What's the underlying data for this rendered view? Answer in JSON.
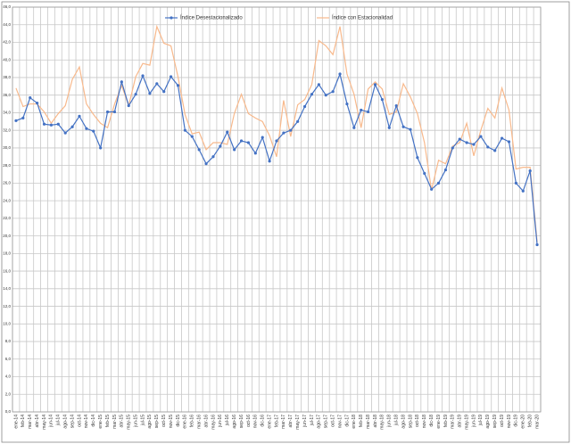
{
  "chart_data": {
    "type": "line",
    "categories": [
      "ene-14",
      "feb-14",
      "mar-14",
      "abr-14",
      "may-14",
      "jun-14",
      "jul-14",
      "ago-14",
      "sep-14",
      "oct-14",
      "nov-14",
      "dic-14",
      "ene-15",
      "feb-15",
      "mar-15",
      "abr-15",
      "may-15",
      "jun-15",
      "jul-15",
      "ago-15",
      "sep-15",
      "oct-15",
      "nov-15",
      "dic-15",
      "ene-16",
      "feb-16",
      "mar-16",
      "abr-16",
      "may-16",
      "jun-16",
      "jul-16",
      "ago-16",
      "sep-16",
      "oct-16",
      "nov-16",
      "dic-16",
      "ene-17",
      "feb-17",
      "mar-17",
      "abr-17",
      "may-17",
      "jun-17",
      "jul-17",
      "ago-17",
      "sep-17",
      "oct-17",
      "nov-17",
      "dic-17",
      "ene-18",
      "feb-18",
      "mar-18",
      "abr-18",
      "may-18",
      "jun-18",
      "jul-18",
      "ago-18",
      "sep-18",
      "oct-18",
      "nov-18",
      "dic-18",
      "ene-19",
      "feb-19",
      "mar-19",
      "abr-19",
      "may-19",
      "jun-19",
      "jul-19",
      "ago-19",
      "sep-19",
      "oct-19",
      "nov-19",
      "dic-19",
      "ene-20",
      "feb-20",
      "mar-20"
    ],
    "series": [
      {
        "name": "Índice Desestacionalizado",
        "color": "#4472c4",
        "markers": true,
        "values": [
          33.1,
          33.4,
          35.7,
          35.1,
          32.7,
          32.6,
          32.7,
          31.7,
          32.4,
          33.6,
          32.2,
          31.9,
          30.0,
          34.1,
          34.1,
          37.5,
          34.8,
          36.1,
          38.2,
          36.2,
          37.3,
          36.4,
          38.1,
          37.1,
          32.0,
          31.3,
          29.8,
          28.2,
          29.0,
          30.2,
          31.8,
          29.8,
          30.8,
          30.6,
          29.4,
          31.2,
          28.5,
          30.8,
          31.7,
          32.0,
          33.0,
          34.7,
          36.1,
          37.2,
          36.0,
          36.4,
          38.4,
          35.0,
          32.3,
          34.3,
          34.1,
          37.2,
          35.5,
          32.3,
          34.8,
          32.4,
          32.1,
          28.9,
          27.1,
          25.3,
          26.0,
          27.5,
          30.0,
          31.0,
          30.6,
          30.4,
          31.3,
          30.1,
          29.7,
          31.1,
          30.7,
          26.0,
          25.1,
          27.4,
          19.0
        ]
      },
      {
        "name": "Índice con Estacionalidad",
        "color": "#f8b98c",
        "markers": false,
        "values": [
          36.8,
          34.7,
          35.0,
          35.0,
          34.1,
          32.8,
          33.9,
          34.8,
          37.8,
          39.2,
          35.0,
          33.8,
          32.8,
          32.3,
          35.0,
          37.1,
          34.8,
          38.1,
          39.6,
          39.4,
          43.8,
          41.9,
          41.6,
          38.1,
          33.8,
          31.6,
          31.8,
          29.8,
          30.6,
          30.6,
          30.4,
          33.9,
          36.1,
          33.9,
          33.4,
          33.0,
          31.4,
          29.0,
          35.4,
          31.3,
          34.9,
          35.5,
          37.2,
          42.2,
          41.6,
          40.6,
          43.8,
          38.4,
          36.1,
          32.3,
          36.7,
          37.5,
          36.7,
          33.8,
          34.1,
          37.3,
          35.8,
          33.9,
          30.6,
          25.2,
          28.6,
          28.2,
          30.2,
          30.6,
          32.8,
          29.1,
          32.0,
          34.5,
          33.4,
          36.8,
          34.3,
          27.6,
          27.8,
          27.8,
          19.3
        ]
      }
    ],
    "ylim": [
      0,
      46
    ],
    "yticks": [
      {
        "value": 0,
        "label": "0,0"
      },
      {
        "value": 2,
        "label": "2,0"
      },
      {
        "value": 4,
        "label": "4,0"
      },
      {
        "value": 6,
        "label": "6,0"
      },
      {
        "value": 8,
        "label": "8,0"
      },
      {
        "value": 10,
        "label": "10,0"
      },
      {
        "value": 12,
        "label": "12,0"
      },
      {
        "value": 14,
        "label": "14,0"
      },
      {
        "value": 16,
        "label": "16,0"
      },
      {
        "value": 18,
        "label": "18,0"
      },
      {
        "value": 20,
        "label": "20,0"
      },
      {
        "value": 22,
        "label": "22,0"
      },
      {
        "value": 24,
        "label": "24,0"
      },
      {
        "value": 26,
        "label": "26,0"
      },
      {
        "value": 28,
        "label": "28,0"
      },
      {
        "value": 30,
        "label": "30,0"
      },
      {
        "value": 32,
        "label": "32,0"
      },
      {
        "value": 34,
        "label": "34,0"
      },
      {
        "value": 36,
        "label": "36,0"
      },
      {
        "value": 38,
        "label": "38,0"
      },
      {
        "value": 40,
        "label": "40,0"
      },
      {
        "value": 42,
        "label": "42,0"
      },
      {
        "value": 44,
        "label": "44,0"
      },
      {
        "value": 46,
        "label": "46,0"
      }
    ],
    "grid": true,
    "legend": "top"
  }
}
